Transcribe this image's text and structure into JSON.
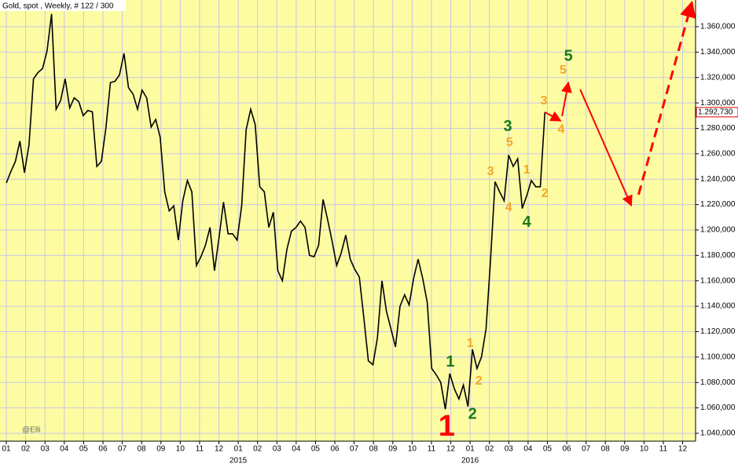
{
  "chart_data": {
    "type": "line",
    "title": "Gold, spot , Weekly, # 122 / 300",
    "watermark": "@Elli",
    "color": "#000000",
    "background": "#fdfca3",
    "grid": true,
    "x": [
      0,
      1,
      2,
      3,
      4,
      5,
      6,
      7,
      8,
      9,
      10,
      11,
      12,
      13,
      14,
      15,
      16,
      17,
      18,
      19,
      20,
      21,
      22,
      23,
      24,
      25,
      26,
      27,
      28,
      29,
      30,
      31,
      32,
      33,
      34,
      35,
      36,
      37,
      38,
      39,
      40,
      41,
      42,
      43,
      44,
      45,
      46,
      47,
      48,
      49,
      50,
      51,
      52,
      53,
      54,
      55,
      56,
      57,
      58,
      59,
      60,
      61,
      62,
      63,
      64,
      65,
      66,
      67,
      68,
      69,
      70,
      71,
      72,
      73,
      74,
      75,
      76,
      77,
      78,
      79,
      80,
      81,
      82,
      83,
      84,
      85,
      86,
      87,
      88,
      89,
      90,
      91,
      92,
      93,
      94,
      95,
      96,
      97,
      98,
      99,
      100,
      101,
      102,
      103,
      104,
      105,
      106,
      107,
      108,
      109,
      110,
      111,
      112,
      113,
      114,
      115,
      116,
      117,
      118,
      119
    ],
    "values": [
      1237,
      1246,
      1254,
      1270,
      1245,
      1267,
      1319,
      1324,
      1327,
      1341,
      1370,
      1295,
      1302,
      1319,
      1296,
      1304,
      1301,
      1290,
      1294,
      1293,
      1250,
      1254,
      1280,
      1316,
      1317,
      1322,
      1339,
      1312,
      1307,
      1295,
      1310,
      1304,
      1281,
      1287,
      1273,
      1230,
      1215,
      1219,
      1192,
      1223,
      1239,
      1230,
      1172,
      1179,
      1188,
      1202,
      1168,
      1194,
      1222,
      1197,
      1197,
      1192,
      1219,
      1279,
      1295,
      1283,
      1234,
      1230,
      1202,
      1214,
      1168,
      1160,
      1185,
      1199,
      1202,
      1207,
      1202,
      1180,
      1179,
      1188,
      1224,
      1208,
      1191,
      1172,
      1182,
      1196,
      1177,
      1169,
      1163,
      1131,
      1097,
      1094,
      1115,
      1160,
      1136,
      1122,
      1108,
      1140,
      1149,
      1141,
      1162,
      1177,
      1162,
      1143,
      1091,
      1086,
      1080,
      1059,
      1087,
      1075,
      1067,
      1078,
      1061,
      1106,
      1091,
      1100,
      1122,
      1177,
      1238,
      1230,
      1223,
      1259,
      1250,
      1256,
      1217,
      1227,
      1239,
      1234,
      1234,
      1292.73
    ],
    "last_label": "1.292,730",
    "xlim": [
      -1.4,
      152.3
    ],
    "ylim": [
      1033.8,
      1381
    ],
    "xticks": [
      {
        "value": 0,
        "label": "01"
      },
      {
        "value": 4.27,
        "label": "02"
      },
      {
        "value": 8.54,
        "label": "03"
      },
      {
        "value": 12.81,
        "label": "04"
      },
      {
        "value": 17.08,
        "label": "05"
      },
      {
        "value": 21.35,
        "label": "06"
      },
      {
        "value": 25.62,
        "label": "07"
      },
      {
        "value": 29.89,
        "label": "08"
      },
      {
        "value": 34.16,
        "label": "09"
      },
      {
        "value": 38.43,
        "label": "10"
      },
      {
        "value": 42.7,
        "label": "11"
      },
      {
        "value": 46.97,
        "label": "12"
      },
      {
        "value": 51.24,
        "label": "01"
      },
      {
        "value": 55.51,
        "label": "02"
      },
      {
        "value": 59.78,
        "label": "03"
      },
      {
        "value": 64.05,
        "label": "04"
      },
      {
        "value": 68.32,
        "label": "05"
      },
      {
        "value": 72.59,
        "label": "06"
      },
      {
        "value": 76.86,
        "label": "07"
      },
      {
        "value": 81.13,
        "label": "08"
      },
      {
        "value": 85.4,
        "label": "09"
      },
      {
        "value": 89.67,
        "label": "10"
      },
      {
        "value": 93.94,
        "label": "11"
      },
      {
        "value": 98.21,
        "label": "12"
      },
      {
        "value": 102.48,
        "label": "01"
      },
      {
        "value": 106.75,
        "label": "02"
      },
      {
        "value": 111.02,
        "label": "03"
      },
      {
        "value": 115.29,
        "label": "04"
      },
      {
        "value": 119.56,
        "label": "05"
      },
      {
        "value": 123.83,
        "label": "06"
      },
      {
        "value": 128.1,
        "label": "07"
      },
      {
        "value": 132.37,
        "label": "08"
      },
      {
        "value": 136.64,
        "label": "09"
      },
      {
        "value": 140.91,
        "label": "10"
      },
      {
        "value": 145.18,
        "label": "11"
      },
      {
        "value": 149.45,
        "label": "12"
      }
    ],
    "year_labels": [
      {
        "value": 51.24,
        "label": "2015"
      },
      {
        "value": 102.48,
        "label": "2016"
      }
    ],
    "yticks": [
      {
        "value": 1040,
        "label": "1.040,000"
      },
      {
        "value": 1060,
        "label": "1.060,000"
      },
      {
        "value": 1080,
        "label": "1.080,000"
      },
      {
        "value": 1100,
        "label": "1.100,000"
      },
      {
        "value": 1120,
        "label": "1.120,000"
      },
      {
        "value": 1140,
        "label": "1.140,000"
      },
      {
        "value": 1160,
        "label": "1.160,000"
      },
      {
        "value": 1180,
        "label": "1.180,000"
      },
      {
        "value": 1200,
        "label": "1.200,000"
      },
      {
        "value": 1220,
        "label": "1.220,000"
      },
      {
        "value": 1240,
        "label": "1.240,000"
      },
      {
        "value": 1260,
        "label": "1.260,000"
      },
      {
        "value": 1280,
        "label": "1.280,000"
      },
      {
        "value": 1300,
        "label": "1.300,000"
      },
      {
        "value": 1320,
        "label": "1.320,000"
      },
      {
        "value": 1340,
        "label": "1.340,000"
      },
      {
        "value": 1360,
        "label": "1.360,000"
      }
    ],
    "annotations": [
      {
        "text": "1",
        "x": 97.3,
        "y": 1044.3,
        "color": "#ff0000"
      },
      {
        "text": "1",
        "x": 98.1,
        "y": 1095.6,
        "color": "#1a7a1a"
      },
      {
        "text": "2",
        "x": 103,
        "y": 1054.8,
        "color": "#1a7a1a"
      },
      {
        "text": "1",
        "x": 102.5,
        "y": 1110.4,
        "color": "#f5a623"
      },
      {
        "text": "2",
        "x": 104.4,
        "y": 1080.8,
        "color": "#f5a623"
      },
      {
        "text": "3",
        "x": 107,
        "y": 1245.7,
        "color": "#f5a623"
      },
      {
        "text": "4",
        "x": 111,
        "y": 1217.3,
        "color": "#f5a623"
      },
      {
        "text": "5",
        "x": 111.2,
        "y": 1268.6,
        "color": "#f5a623"
      },
      {
        "text": "3",
        "x": 110.8,
        "y": 1281,
        "color": "#1a7a1a"
      },
      {
        "text": "4",
        "x": 115,
        "y": 1205.6,
        "color": "#1a7a1a"
      },
      {
        "text": "1",
        "x": 115,
        "y": 1247,
        "color": "#f5a623"
      },
      {
        "text": "2",
        "x": 119,
        "y": 1228.4,
        "color": "#f5a623"
      },
      {
        "text": "3",
        "x": 118.8,
        "y": 1301.3,
        "color": "#f5a623"
      },
      {
        "text": "4",
        "x": 122.6,
        "y": 1279,
        "color": "#f5a623"
      },
      {
        "text": "5",
        "x": 123,
        "y": 1325.4,
        "color": "#f5a623"
      },
      {
        "text": "5",
        "x": 124.2,
        "y": 1336.5,
        "color": "#1a7a1a"
      }
    ],
    "projections": [
      {
        "x": [
          119,
          122.5
        ],
        "y": [
          1292.7,
          1285.9
        ],
        "dashed": false,
        "color": "#ff0000"
      },
      {
        "x": [
          122.8,
          124.2
        ],
        "y": [
          1289.6,
          1316.1
        ],
        "dashed": false,
        "color": "#ff0000"
      },
      {
        "x": [
          126.8,
          138.1
        ],
        "y": [
          1310.6,
          1219.2
        ],
        "dashed": false,
        "color": "#ff0000"
      },
      {
        "x": [
          139.7,
          151.5
        ],
        "y": [
          1227.8,
          1379.2
        ],
        "dashed": true,
        "color": "#ff0000"
      }
    ]
  }
}
